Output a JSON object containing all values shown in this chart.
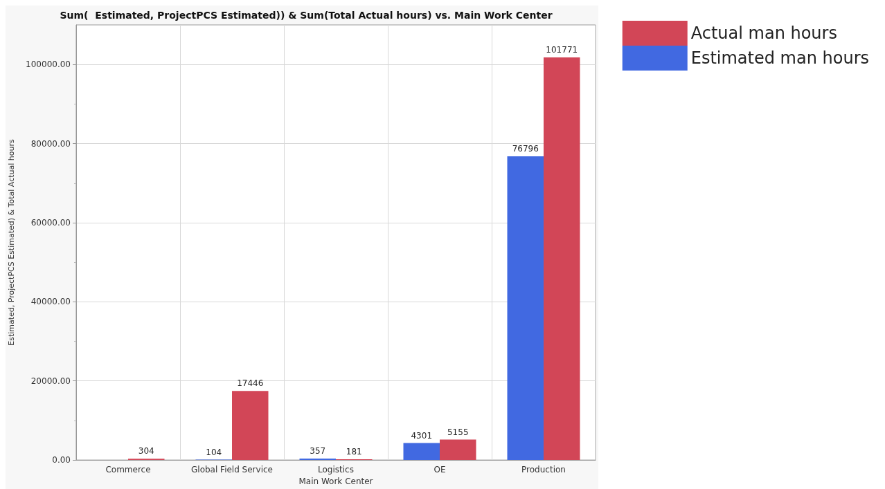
{
  "chart_data": {
    "type": "bar",
    "title": "Sum(  Estimated, ProjectPCS Estimated)) & Sum(Total Actual hours) vs. Main Work Center",
    "xlabel": "Main Work Center",
    "ylabel": "Estimated, ProjectPCS Estimated) & Total Actual hours",
    "categories": [
      "Commerce",
      "Global Field Service",
      "Logistics",
      "OE",
      "Production"
    ],
    "series": [
      {
        "name": "Estimated man hours",
        "color": "#4169e1",
        "values": [
          null,
          104,
          357,
          4301,
          76796
        ]
      },
      {
        "name": "Actual man hours",
        "color": "#d24657",
        "values": [
          304,
          17446,
          181,
          5155,
          101771
        ]
      }
    ],
    "ylim": [
      0,
      110000
    ],
    "yticks": [
      {
        "value": 0,
        "label": "0.00"
      },
      {
        "value": 20000,
        "label": "20000.00"
      },
      {
        "value": 40000,
        "label": "40000.00"
      },
      {
        "value": 60000,
        "label": "60000.00"
      },
      {
        "value": 80000,
        "label": "80000.00"
      },
      {
        "value": 100000,
        "label": "100000.00"
      }
    ],
    "grid": true,
    "legend": "top right",
    "data_labels": true
  }
}
